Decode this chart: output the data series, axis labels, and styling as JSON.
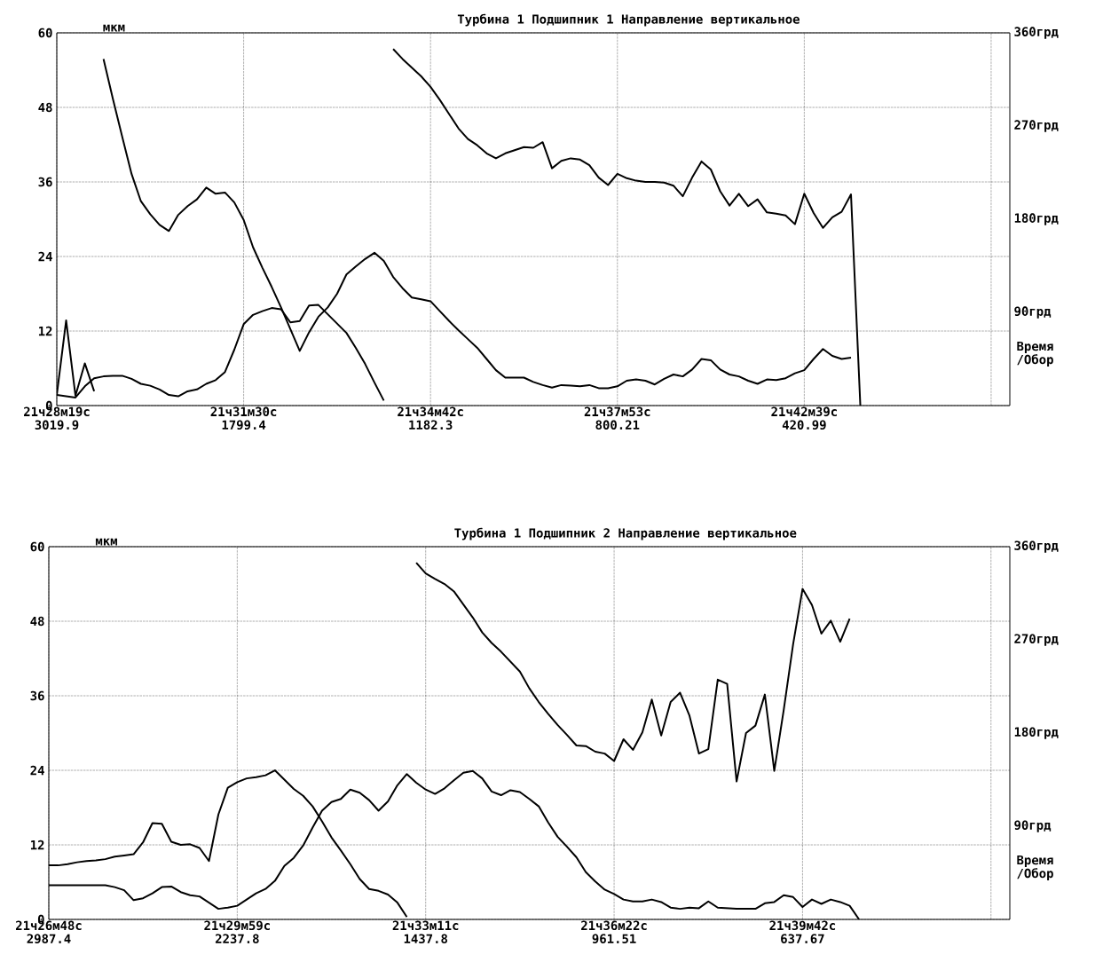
{
  "chart_data": [
    {
      "type": "line",
      "title": "Турбина 1 Подшипник 1 Направление вертикальное",
      "ylabel": "мкм",
      "xlabel": "Время /Обор",
      "categories": [
        "21ч28м19с 3019.9",
        null,
        null,
        null,
        null,
        null,
        null,
        null,
        null,
        null,
        null,
        null,
        null,
        null,
        null,
        null,
        null,
        null,
        null,
        null,
        "21ч31м30с 1799.4",
        null,
        null,
        null,
        null,
        null,
        null,
        null,
        null,
        null,
        null,
        null,
        null,
        null,
        null,
        null,
        null,
        null,
        null,
        null,
        "21ч34м42с 1182.3",
        null,
        null,
        null,
        null,
        null,
        null,
        null,
        null,
        null,
        null,
        null,
        null,
        null,
        null,
        null,
        null,
        null,
        null,
        null,
        "21ч37м53с 800.21",
        null,
        null,
        null,
        null,
        null,
        null,
        null,
        null,
        null,
        null,
        null,
        null,
        null,
        null,
        null,
        null,
        null,
        null,
        null,
        "21ч42м39с 420.99",
        null,
        null,
        null,
        null,
        null,
        null,
        null,
        null,
        null,
        null,
        null,
        null,
        null,
        null,
        null,
        null,
        null,
        null,
        null,
        null,
        null,
        null
      ],
      "ylim": [
        0,
        60
      ],
      "yticks": [
        0,
        12,
        24,
        36,
        48,
        60
      ],
      "y2lim": [
        0,
        360
      ],
      "y2ticks": [
        {
          "value": 90,
          "label": "90грд"
        },
        {
          "value": 180,
          "label": "180грд"
        },
        {
          "value": 270,
          "label": "270грд"
        },
        {
          "value": 360,
          "label": "360грд"
        }
      ],
      "grid": true,
      "series": [
        {
          "color": "#000000",
          "values": [
            1.7,
            13.7,
            1.6,
            6.8,
            2.3,
            null,
            null,
            null,
            null,
            null,
            null,
            null,
            null,
            null,
            null,
            null,
            null,
            null,
            null,
            null,
            null,
            null,
            null,
            null,
            null,
            null,
            null,
            null,
            null,
            null,
            null,
            null,
            null,
            null,
            null,
            null,
            null,
            null,
            null,
            null,
            null,
            null,
            null,
            null,
            null,
            null,
            null,
            null,
            null,
            null,
            null,
            null,
            null,
            null,
            null,
            null,
            null,
            null,
            null,
            null,
            null,
            null,
            null,
            null,
            null,
            null,
            null,
            null,
            null,
            null,
            null,
            null,
            null,
            null,
            null,
            null,
            null,
            null,
            null,
            null,
            null,
            null,
            null,
            null,
            null,
            null,
            null,
            null,
            null,
            null,
            null,
            null,
            null,
            null,
            null,
            null,
            null,
            null,
            null,
            null,
            null,
            null,
            null
          ]
        },
        {
          "color": "#000000",
          "values": [
            1.7,
            1.5,
            1.3,
            3.1,
            4.4,
            4.7,
            4.8,
            4.8,
            4.3,
            3.5,
            3.2,
            2.6,
            1.7,
            1.5,
            2.3,
            2.6,
            3.5,
            4.1,
            5.4,
            9.0,
            13.1,
            14.6,
            15.2,
            15.7,
            15.5,
            13.4,
            13.6,
            16.1,
            16.2,
            14.7,
            13.2,
            11.7,
            9.3,
            6.7,
            3.7,
            0.8,
            null,
            null,
            null,
            null,
            null,
            null,
            null,
            null,
            null,
            null,
            null,
            null,
            null,
            null,
            null,
            null,
            null,
            null,
            null,
            null,
            null,
            null,
            null,
            null,
            null,
            null,
            null,
            null,
            null,
            null,
            null,
            null,
            null,
            null,
            null,
            null,
            null,
            null,
            null,
            null,
            null,
            null,
            null,
            null,
            null,
            null,
            null,
            null,
            null,
            null,
            null,
            null,
            null,
            null,
            null,
            null,
            null,
            null,
            null,
            null,
            null,
            null,
            null,
            null,
            null,
            null,
            null
          ]
        },
        {
          "color": "#000000",
          "values": [
            null,
            null,
            null,
            null,
            null,
            55.8,
            49.4,
            43.3,
            37.3,
            32.9,
            30.8,
            29.1,
            28.1,
            30.7,
            32.1,
            33.2,
            35.1,
            34.1,
            34.3,
            32.7,
            29.9,
            25.5,
            22.2,
            19.1,
            15.8,
            12.3,
            8.8,
            11.8,
            14.3,
            15.8,
            18.0,
            21.1,
            22.4,
            23.6,
            24.6,
            23.3,
            20.7,
            18.9,
            17.4,
            17.1,
            16.8,
            15.2,
            13.6,
            12.1,
            10.7,
            9.3,
            7.5,
            5.7,
            4.5,
            4.5,
            4.5,
            3.8,
            3.3,
            2.9,
            3.3,
            3.2,
            3.1,
            3.3,
            2.8,
            2.8,
            3.1,
            4.0,
            4.2,
            4.0,
            3.4,
            4.3,
            5.0,
            4.7,
            5.8,
            7.5,
            7.3,
            5.8,
            5.0,
            4.7,
            4.0,
            3.5,
            4.2,
            4.1,
            4.4,
            5.2,
            5.7,
            7.5,
            9.1,
            8.0,
            7.5,
            7.7,
            null,
            null,
            null,
            null,
            null,
            null,
            null,
            null,
            null,
            null,
            null,
            null,
            null,
            null,
            null,
            null,
            null
          ]
        },
        {
          "color": "#000000",
          "values": [
            null,
            null,
            null,
            null,
            null,
            null,
            null,
            null,
            null,
            null,
            null,
            null,
            null,
            null,
            null,
            null,
            null,
            null,
            null,
            null,
            null,
            null,
            null,
            null,
            null,
            null,
            null,
            null,
            null,
            null,
            null,
            null,
            null,
            null,
            null,
            null,
            57.4,
            55.8,
            54.4,
            53.0,
            51.3,
            49.2,
            46.9,
            44.6,
            42.9,
            41.9,
            40.6,
            39.8,
            40.6,
            41.1,
            41.6,
            41.5,
            42.4,
            38.2,
            39.4,
            39.8,
            39.6,
            38.7,
            36.7,
            35.5,
            37.3,
            36.6,
            36.2,
            36.0,
            36.0,
            35.9,
            35.4,
            33.7,
            36.7,
            39.3,
            38.0,
            34.5,
            32.2,
            34.1,
            32.1,
            33.2,
            31.1,
            30.9,
            30.6,
            29.2,
            34.1,
            31.0,
            28.6,
            30.3,
            31.2,
            34.0,
            0,
            null,
            null,
            null,
            null,
            null,
            null,
            null,
            null,
            null,
            null,
            null,
            null,
            null,
            null,
            null,
            null
          ]
        }
      ]
    },
    {
      "type": "line",
      "title": "Турбина 1 Подшипник 2 Направление вертикальное",
      "ylabel": "мкм",
      "xlabel": "Время /Обор",
      "categories": [
        "21ч26м48с 2987.4",
        null,
        null,
        null,
        null,
        null,
        null,
        null,
        null,
        null,
        null,
        null,
        null,
        null,
        null,
        null,
        null,
        null,
        null,
        null,
        "21ч29м59с 2237.8",
        null,
        null,
        null,
        null,
        null,
        null,
        null,
        null,
        null,
        null,
        null,
        null,
        null,
        null,
        null,
        null,
        null,
        null,
        null,
        "21ч33м11с 1437.8",
        null,
        null,
        null,
        null,
        null,
        null,
        null,
        null,
        null,
        null,
        null,
        null,
        null,
        null,
        null,
        null,
        null,
        null,
        null,
        "21ч36м22с 961.51",
        null,
        null,
        null,
        null,
        null,
        null,
        null,
        null,
        null,
        null,
        null,
        null,
        null,
        null,
        null,
        null,
        null,
        null,
        null,
        "21ч39м42с 637.67",
        null,
        null,
        null,
        null,
        null,
        null,
        null,
        null,
        null,
        null,
        null,
        null,
        null,
        null,
        null,
        null,
        null,
        null,
        null,
        null,
        null,
        null
      ],
      "ylim": [
        0,
        60
      ],
      "yticks": [
        0,
        12,
        24,
        36,
        48,
        60
      ],
      "y2lim": [
        0,
        360
      ],
      "y2ticks": [
        {
          "value": 90,
          "label": "90грд"
        },
        {
          "value": 180,
          "label": "180грд"
        },
        {
          "value": 270,
          "label": "270грд"
        },
        {
          "value": 360,
          "label": "360грд"
        }
      ],
      "grid": true,
      "series": [
        {
          "color": "#000000",
          "values": [
            8.7,
            8.7,
            8.9,
            9.2,
            9.4,
            9.5,
            9.7,
            10.1,
            10.3,
            10.5,
            12.4,
            15.5,
            15.4,
            12.5,
            12.0,
            12.1,
            11.5,
            9.4,
            16.9,
            21.2,
            22.1,
            22.7,
            22.9,
            23.2,
            24.0,
            22.5,
            21.0,
            19.9,
            18.2,
            15.8,
            13.2,
            11.1,
            8.9,
            6.5,
            4.9,
            4.6,
            4.0,
            2.7,
            0.4,
            null,
            null,
            null,
            null,
            null,
            null,
            null,
            null,
            null,
            null,
            null,
            null,
            null,
            null,
            null,
            null,
            null,
            null,
            null,
            null,
            null,
            null,
            null,
            null,
            null,
            null,
            null,
            null,
            null,
            null,
            null,
            null,
            null,
            null,
            null,
            null,
            null,
            null,
            null,
            null,
            null,
            null,
            null,
            null,
            null,
            null,
            null,
            null,
            null,
            null,
            null,
            null,
            null,
            null,
            null,
            null,
            null,
            null,
            null,
            null,
            null,
            null,
            null,
            null
          ]
        },
        {
          "color": "#000000",
          "values": [
            5.5,
            5.5,
            5.5,
            5.5,
            5.5,
            5.5,
            5.5,
            5.2,
            4.7,
            3.1,
            3.4,
            4.2,
            5.2,
            5.3,
            4.4,
            3.9,
            3.7,
            2.7,
            1.7,
            1.9,
            2.2,
            3.2,
            4.2,
            4.9,
            6.2,
            8.6,
            9.9,
            11.9,
            14.8,
            17.5,
            18.9,
            19.4,
            20.9,
            20.4,
            19.2,
            17.5,
            19.0,
            21.6,
            23.4,
            22.0,
            20.9,
            20.2,
            21.1,
            22.4,
            23.6,
            23.9,
            22.7,
            20.6,
            20.0,
            20.8,
            20.5,
            19.4,
            18.2,
            15.6,
            13.3,
            11.7,
            10.0,
            7.6,
            6.1,
            4.8,
            4.1,
            3.2,
            2.9,
            2.9,
            3.2,
            2.8,
            1.9,
            1.7,
            1.9,
            1.8,
            2.9,
            1.9,
            1.8,
            1.7,
            1.7,
            1.7,
            2.6,
            2.8,
            3.9,
            3.6,
            2.0,
            3.2,
            2.5,
            3.2,
            2.8,
            2.2,
            0,
            null,
            null,
            null,
            null,
            null,
            null,
            null,
            null,
            null,
            null,
            null,
            null,
            null,
            null,
            null,
            null
          ]
        },
        {
          "color": "#000000",
          "values": [
            null,
            null,
            null,
            null,
            null,
            null,
            null,
            null,
            null,
            null,
            null,
            null,
            null,
            null,
            null,
            null,
            null,
            null,
            null,
            null,
            null,
            null,
            null,
            null,
            null,
            null,
            null,
            null,
            null,
            null,
            null,
            null,
            null,
            null,
            null,
            null,
            null,
            null,
            null,
            57.4,
            55.7,
            54.8,
            54.0,
            52.8,
            50.7,
            48.6,
            46.2,
            44.5,
            43.1,
            41.5,
            39.9,
            37.2,
            35.0,
            33.1,
            31.3,
            29.7,
            28.0,
            27.9,
            27.0,
            26.7,
            25.5,
            29.0,
            27.3,
            30.1,
            35.4,
            29.6,
            35.0,
            36.5,
            32.8,
            26.7,
            27.4,
            38.6,
            37.9,
            22.2,
            30.0,
            31.2,
            36.2,
            23.9,
            33.7,
            44.3,
            53.2,
            50.6,
            46.0,
            48.1,
            44.7,
            48.4,
            null,
            null,
            null,
            null,
            null,
            null,
            null,
            null,
            null,
            null,
            null,
            null,
            null,
            null,
            null,
            null,
            null
          ]
        }
      ]
    }
  ]
}
